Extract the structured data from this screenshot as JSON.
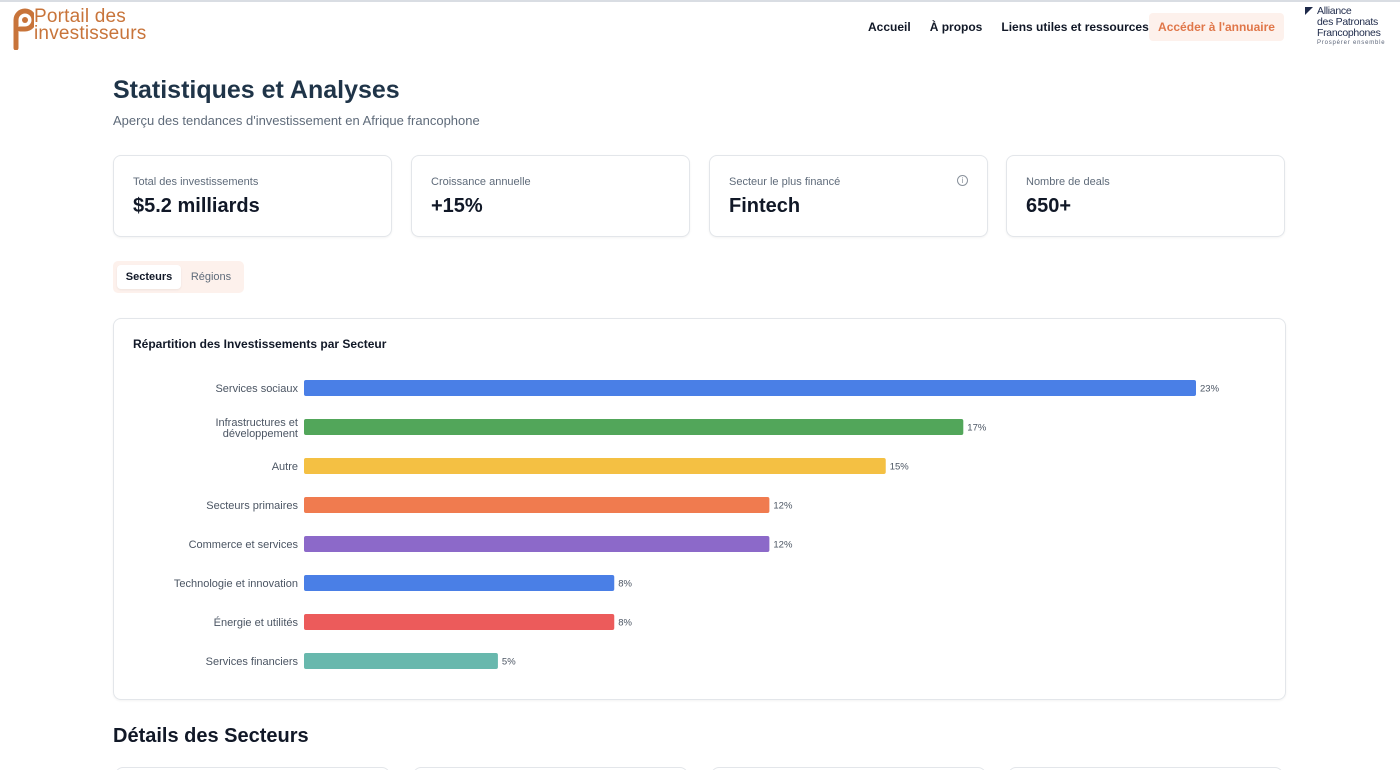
{
  "header": {
    "logo_line1": "Portail des",
    "logo_line2": "investisseurs",
    "nav": [
      "Accueil",
      "À propos",
      "Liens utiles et ressources"
    ],
    "cta_label": "Accéder à l'annuaire",
    "partner_lines": [
      "Alliance",
      "des Patronats",
      "Francophones"
    ],
    "partner_tagline": "Prospérer ensemble"
  },
  "page": {
    "title": "Statistiques et Analyses",
    "subtitle": "Aperçu des tendances d'investissement en Afrique francophone"
  },
  "stats": [
    {
      "label": "Total des investissements",
      "value": "$5.2 milliards"
    },
    {
      "label": "Croissance annuelle",
      "value": "+15%"
    },
    {
      "label": "Secteur le plus financé",
      "value": "Fintech",
      "icon": "info-icon"
    },
    {
      "label": "Nombre de deals",
      "value": "650+"
    }
  ],
  "tabs": {
    "active": "Secteurs",
    "inactive": "Régions"
  },
  "colors": {
    "accent": "#e0774a",
    "accent_bg": "#fdf1ec",
    "logo": "#c8743a"
  },
  "chart_data": {
    "type": "bar",
    "orientation": "horizontal",
    "title": "Répartition des Investissements par Secteur",
    "categories": [
      "Services sociaux",
      "Infrastructures et développement",
      "Autre",
      "Secteurs primaires",
      "Commerce et services",
      "Technologie et innovation",
      "Énergie et utilités",
      "Services financiers"
    ],
    "values": [
      23,
      17,
      15,
      12,
      12,
      8,
      8,
      5
    ],
    "value_labels": [
      "23%",
      "17%",
      "15%",
      "12%",
      "12%",
      "8%",
      "8%",
      "5%"
    ],
    "colors": [
      "#4a7fe6",
      "#52a65a",
      "#f4c043",
      "#f07b4f",
      "#8c69c9",
      "#4a7fe6",
      "#ec5b5b",
      "#68b8ad"
    ],
    "unit": "%",
    "grid": false,
    "legend": "none"
  },
  "details": {
    "title": "Détails des Secteurs"
  }
}
